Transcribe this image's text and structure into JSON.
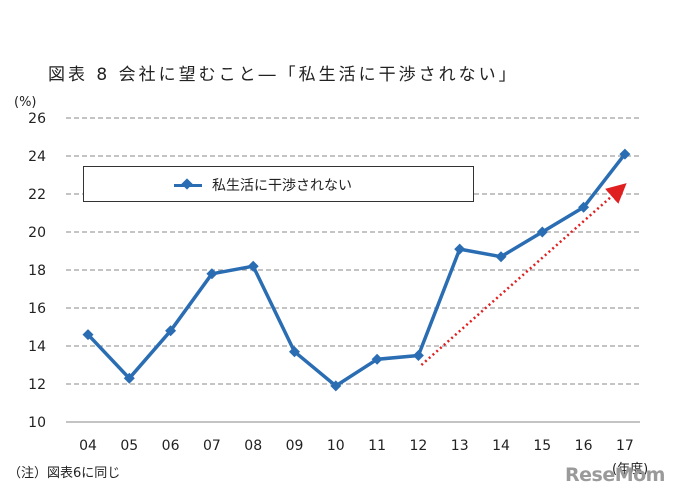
{
  "title": "図表 8  会社に望むこと―「私生活に干渉されない」",
  "note": "（注）図表6に同じ",
  "y_unit": "(%)",
  "x_unit": "(年度)",
  "watermark": "ReseMom",
  "colors": {
    "series": "#2a6db3",
    "arrow": "#e02020",
    "grid": "#8a8a8a"
  },
  "chart_data": {
    "type": "line",
    "categories": [
      "04",
      "05",
      "06",
      "07",
      "08",
      "09",
      "10",
      "11",
      "12",
      "13",
      "14",
      "15",
      "16",
      "17"
    ],
    "series": [
      {
        "name": "私生活に干渉されない",
        "values": [
          14.6,
          12.3,
          14.8,
          17.8,
          18.2,
          13.7,
          11.9,
          13.3,
          13.5,
          19.1,
          18.7,
          20.0,
          21.3,
          24.1
        ]
      }
    ],
    "ylim": [
      10,
      26
    ],
    "yticks": [
      10,
      12,
      14,
      16,
      18,
      20,
      22,
      24,
      26
    ],
    "grid": true,
    "legend_placement": "top-left",
    "trend_arrow": {
      "from": {
        "x": "12",
        "y": 13.0
      },
      "to": {
        "x": "17",
        "y": 22.4
      }
    }
  }
}
